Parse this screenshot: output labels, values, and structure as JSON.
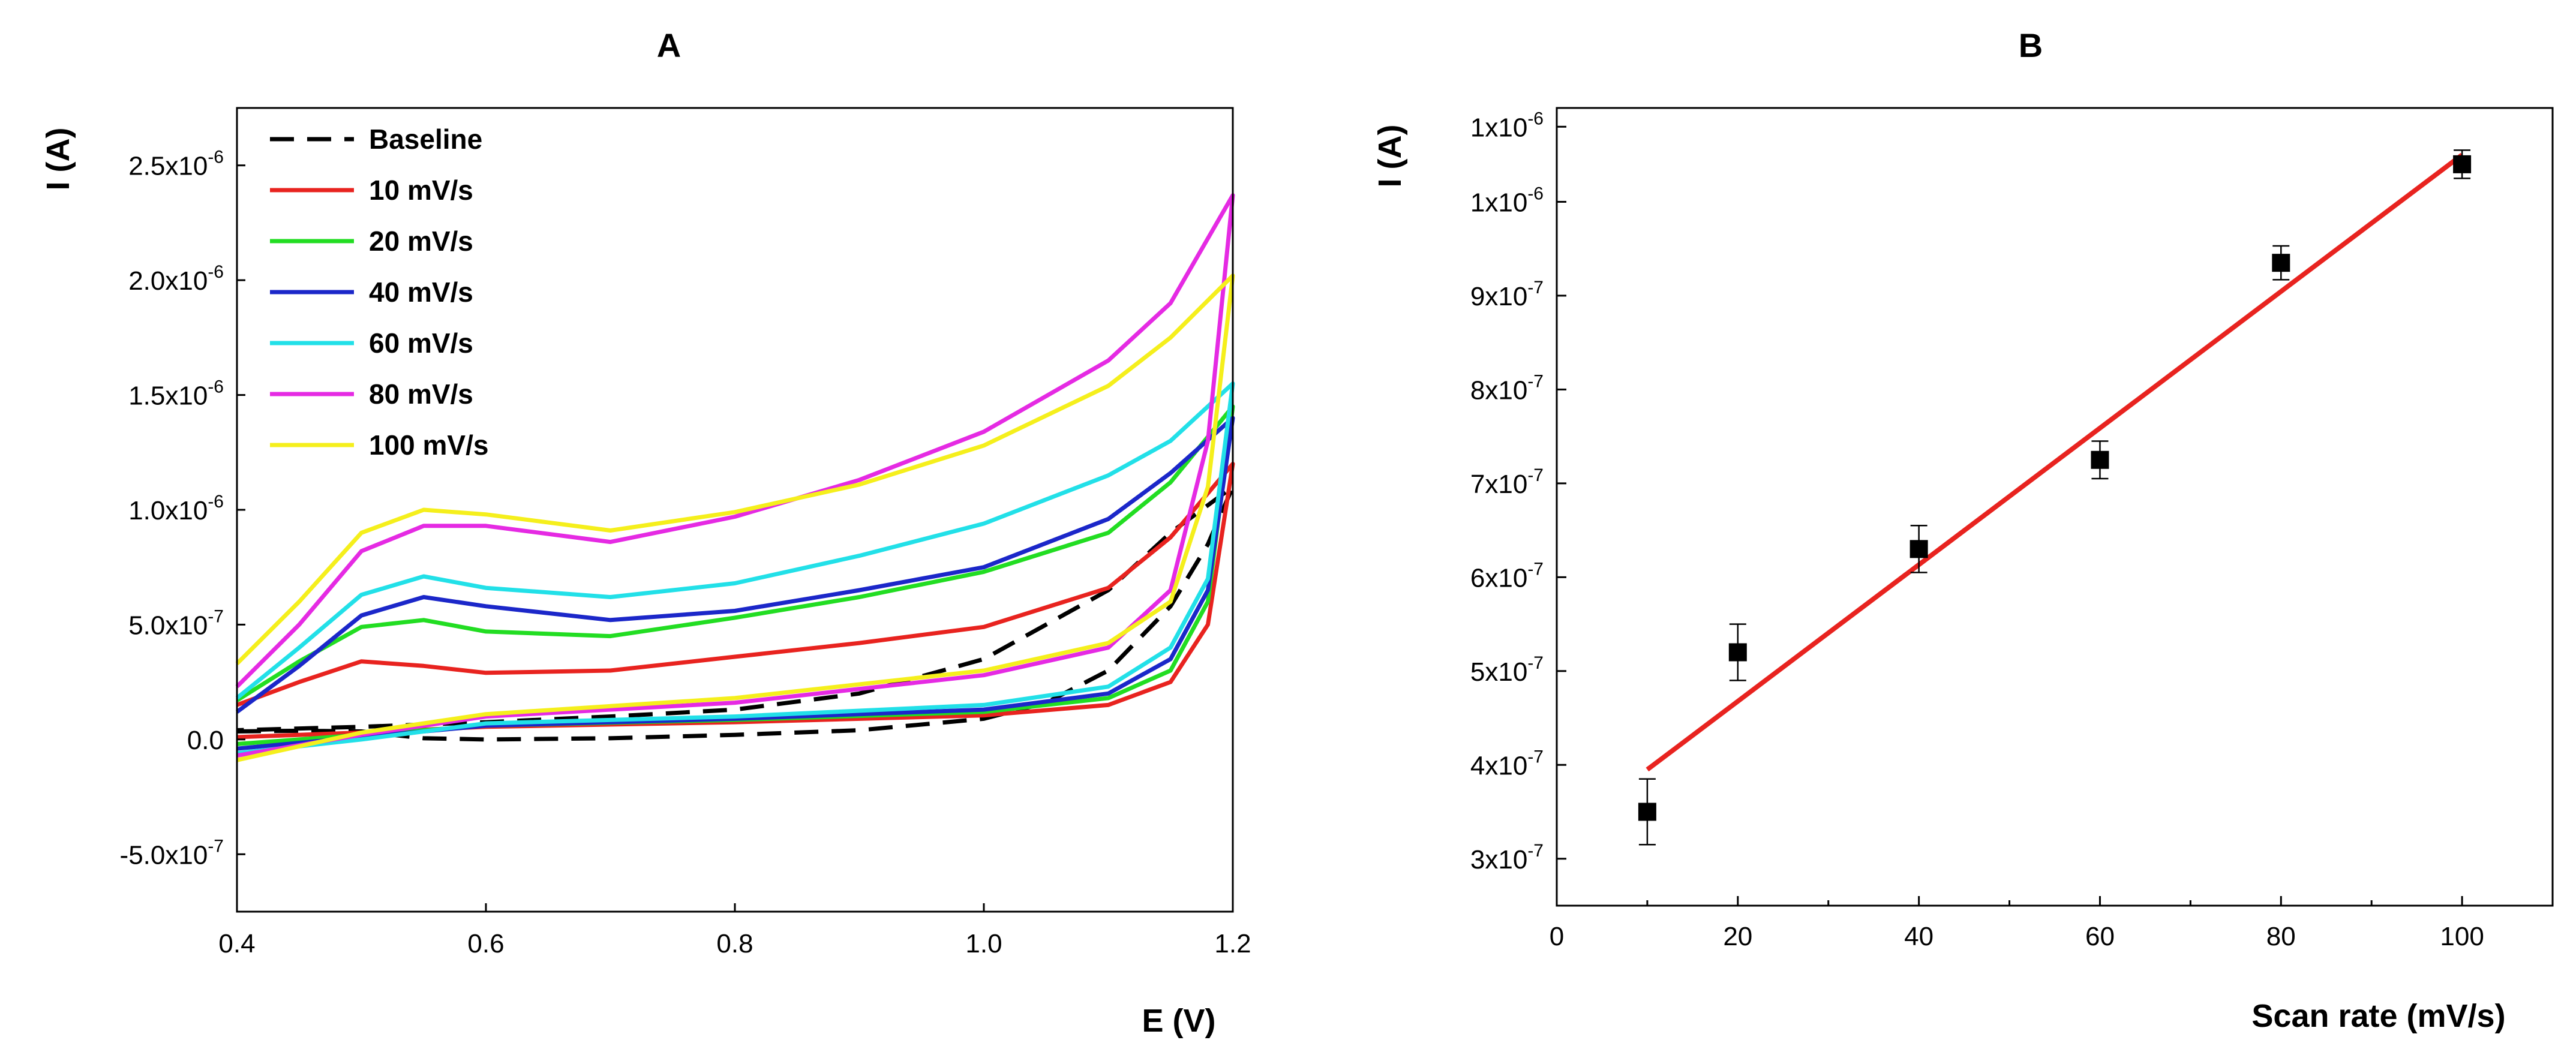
{
  "chart_data": [
    {
      "panel": "A",
      "type": "line",
      "title": "A",
      "xlabel": "E (V)",
      "ylabel": "I (A)",
      "xlim": [
        0.4,
        1.2
      ],
      "ylim": [
        -7.5e-07,
        2.75e-06
      ],
      "xticks": [
        {
          "v": 0.4,
          "label": "0.4"
        },
        {
          "v": 0.6,
          "label": "0.6"
        },
        {
          "v": 0.8,
          "label": "0.8"
        },
        {
          "v": 1.0,
          "label": "1.0"
        },
        {
          "v": 1.2,
          "label": "1.2"
        }
      ],
      "yticks": [
        {
          "v": -5e-07,
          "mant": "-5.0x10",
          "exp": "-7"
        },
        {
          "v": 0,
          "mant": "0.0",
          "exp": ""
        },
        {
          "v": 5e-07,
          "mant": "5.0x10",
          "exp": "-7"
        },
        {
          "v": 1e-06,
          "mant": "1.0x10",
          "exp": "-6"
        },
        {
          "v": 1.5e-06,
          "mant": "1.5x10",
          "exp": "-6"
        },
        {
          "v": 2e-06,
          "mant": "2.0x10",
          "exp": "-6"
        },
        {
          "v": 2.5e-06,
          "mant": "2.5x10",
          "exp": "-6"
        }
      ],
      "legend_position": "top-left",
      "series": [
        {
          "name": "Baseline",
          "color": "#000000",
          "dash": true,
          "forward": [
            [
              0.4,
              3.5e-08
            ],
            [
              0.45,
              3.8e-08
            ],
            [
              0.5,
              3.5e-08
            ],
            [
              0.55,
              5e-09
            ],
            [
              0.6,
              0
            ],
            [
              0.7,
              5e-09
            ],
            [
              0.8,
              2e-08
            ],
            [
              0.9,
              4e-08
            ],
            [
              1.0,
              9e-08
            ],
            [
              1.05,
              1.6e-07
            ],
            [
              1.1,
              3e-07
            ],
            [
              1.15,
              5.8e-07
            ],
            [
              1.18,
              8.5e-07
            ],
            [
              1.2,
              1.1e-06
            ]
          ],
          "reverse": [
            [
              1.2,
              1.1e-06
            ],
            [
              1.15,
              9e-07
            ],
            [
              1.1,
              6.5e-07
            ],
            [
              1.0,
              3.5e-07
            ],
            [
              0.9,
              2e-07
            ],
            [
              0.8,
              1.3e-07
            ],
            [
              0.7,
              1e-07
            ],
            [
              0.6,
              7.5e-08
            ],
            [
              0.5,
              5.5e-08
            ],
            [
              0.4,
              4e-08
            ]
          ]
        },
        {
          "name": "10 mV/s",
          "color": "#e8231f",
          "dash": false,
          "forward": [
            [
              0.4,
              1.5e-07
            ],
            [
              0.45,
              2.5e-07
            ],
            [
              0.5,
              3.4e-07
            ],
            [
              0.55,
              3.2e-07
            ],
            [
              0.6,
              2.9e-07
            ],
            [
              0.7,
              3e-07
            ],
            [
              0.8,
              3.6e-07
            ],
            [
              0.9,
              4.2e-07
            ],
            [
              1.0,
              4.9e-07
            ],
            [
              1.1,
              6.6e-07
            ],
            [
              1.15,
              8.8e-07
            ],
            [
              1.2,
              1.2e-06
            ]
          ],
          "reverse": [
            [
              1.2,
              1.2e-06
            ],
            [
              1.18,
              5e-07
            ],
            [
              1.15,
              2.5e-07
            ],
            [
              1.1,
              1.5e-07
            ],
            [
              1.0,
              1.05e-07
            ],
            [
              0.8,
              7.5e-08
            ],
            [
              0.6,
              5.5e-08
            ],
            [
              0.5,
              3e-08
            ],
            [
              0.4,
              1e-08
            ]
          ]
        },
        {
          "name": "20 mV/s",
          "color": "#22dd22",
          "dash": false,
          "forward": [
            [
              0.4,
              1.7e-07
            ],
            [
              0.45,
              3.4e-07
            ],
            [
              0.5,
              4.9e-07
            ],
            [
              0.55,
              5.2e-07
            ],
            [
              0.6,
              4.7e-07
            ],
            [
              0.7,
              4.5e-07
            ],
            [
              0.8,
              5.3e-07
            ],
            [
              0.9,
              6.2e-07
            ],
            [
              1.0,
              7.3e-07
            ],
            [
              1.1,
              9e-07
            ],
            [
              1.15,
              1.12e-06
            ],
            [
              1.2,
              1.45e-06
            ]
          ],
          "reverse": [
            [
              1.2,
              1.45e-06
            ],
            [
              1.18,
              6e-07
            ],
            [
              1.15,
              3e-07
            ],
            [
              1.1,
              1.8e-07
            ],
            [
              1.0,
              1.2e-07
            ],
            [
              0.8,
              8.5e-08
            ],
            [
              0.6,
              6e-08
            ],
            [
              0.5,
              2e-08
            ],
            [
              0.4,
              -2e-08
            ]
          ]
        },
        {
          "name": "40 mV/s",
          "color": "#1b27c9",
          "dash": false,
          "forward": [
            [
              0.4,
              1.2e-07
            ],
            [
              0.45,
              3.2e-07
            ],
            [
              0.5,
              5.4e-07
            ],
            [
              0.55,
              6.2e-07
            ],
            [
              0.6,
              5.8e-07
            ],
            [
              0.7,
              5.2e-07
            ],
            [
              0.8,
              5.6e-07
            ],
            [
              0.9,
              6.5e-07
            ],
            [
              1.0,
              7.5e-07
            ],
            [
              1.1,
              9.6e-07
            ],
            [
              1.15,
              1.16e-06
            ],
            [
              1.2,
              1.4e-06
            ]
          ],
          "reverse": [
            [
              1.2,
              1.4e-06
            ],
            [
              1.18,
              6.5e-07
            ],
            [
              1.15,
              3.5e-07
            ],
            [
              1.1,
              2e-07
            ],
            [
              1.0,
              1.3e-07
            ],
            [
              0.8,
              9e-08
            ],
            [
              0.6,
              6e-08
            ],
            [
              0.5,
              1e-08
            ],
            [
              0.4,
              -4e-08
            ]
          ]
        },
        {
          "name": "60 mV/s",
          "color": "#22e0e8",
          "dash": false,
          "forward": [
            [
              0.4,
              1.8e-07
            ],
            [
              0.45,
              4e-07
            ],
            [
              0.5,
              6.3e-07
            ],
            [
              0.55,
              7.1e-07
            ],
            [
              0.6,
              6.6e-07
            ],
            [
              0.7,
              6.2e-07
            ],
            [
              0.8,
              6.8e-07
            ],
            [
              0.9,
              8e-07
            ],
            [
              1.0,
              9.4e-07
            ],
            [
              1.1,
              1.15e-06
            ],
            [
              1.15,
              1.3e-06
            ],
            [
              1.2,
              1.55e-06
            ]
          ],
          "reverse": [
            [
              1.2,
              1.55e-06
            ],
            [
              1.18,
              7e-07
            ],
            [
              1.15,
              4e-07
            ],
            [
              1.1,
              2.3e-07
            ],
            [
              1.0,
              1.5e-07
            ],
            [
              0.8,
              1e-07
            ],
            [
              0.6,
              7e-08
            ],
            [
              0.5,
              0
            ],
            [
              0.4,
              -6e-08
            ]
          ]
        },
        {
          "name": "80 mV/s",
          "color": "#e52ae3",
          "dash": false,
          "forward": [
            [
              0.4,
              2.3e-07
            ],
            [
              0.45,
              5e-07
            ],
            [
              0.5,
              8.2e-07
            ],
            [
              0.55,
              9.3e-07
            ],
            [
              0.6,
              9.3e-07
            ],
            [
              0.7,
              8.6e-07
            ],
            [
              0.8,
              9.7e-07
            ],
            [
              0.9,
              1.13e-06
            ],
            [
              1.0,
              1.34e-06
            ],
            [
              1.1,
              1.65e-06
            ],
            [
              1.15,
              1.9e-06
            ],
            [
              1.2,
              2.37e-06
            ]
          ],
          "reverse": [
            [
              1.2,
              2.37e-06
            ],
            [
              1.18,
              1.3e-06
            ],
            [
              1.15,
              6.5e-07
            ],
            [
              1.1,
              4e-07
            ],
            [
              1.0,
              2.8e-07
            ],
            [
              0.8,
              1.6e-07
            ],
            [
              0.6,
              1e-07
            ],
            [
              0.5,
              2e-08
            ],
            [
              0.4,
              -7e-08
            ]
          ]
        },
        {
          "name": "100 mV/s",
          "color": "#f5ef1c",
          "dash": false,
          "forward": [
            [
              0.4,
              3.3e-07
            ],
            [
              0.45,
              6e-07
            ],
            [
              0.5,
              9e-07
            ],
            [
              0.55,
              1e-06
            ],
            [
              0.6,
              9.8e-07
            ],
            [
              0.7,
              9.1e-07
            ],
            [
              0.8,
              9.9e-07
            ],
            [
              0.9,
              1.11e-06
            ],
            [
              1.0,
              1.28e-06
            ],
            [
              1.1,
              1.54e-06
            ],
            [
              1.15,
              1.75e-06
            ],
            [
              1.2,
              2.02e-06
            ]
          ],
          "reverse": [
            [
              1.2,
              2.02e-06
            ],
            [
              1.18,
              1.1e-06
            ],
            [
              1.15,
              6e-07
            ],
            [
              1.1,
              4.2e-07
            ],
            [
              1.0,
              3e-07
            ],
            [
              0.8,
              1.8e-07
            ],
            [
              0.6,
              1.1e-07
            ],
            [
              0.5,
              3e-08
            ],
            [
              0.4,
              -9e-08
            ]
          ]
        }
      ]
    },
    {
      "panel": "B",
      "type": "scatter",
      "title": "B",
      "xlabel": "Scan rate (mV/s)",
      "ylabel": "I (A)",
      "xlim": [
        0,
        110
      ],
      "ylim": [
        2.5e-07,
        1.1e-06
      ],
      "xticks": [
        {
          "v": 0,
          "label": "0"
        },
        {
          "v": 20,
          "label": "20"
        },
        {
          "v": 40,
          "label": "40"
        },
        {
          "v": 60,
          "label": "60"
        },
        {
          "v": 80,
          "label": "80"
        },
        {
          "v": 100,
          "label": "100"
        }
      ],
      "yticks": [
        {
          "v": 3e-07,
          "mant": "3x10",
          "exp": "-7"
        },
        {
          "v": 4e-07,
          "mant": "4x10",
          "exp": "-7"
        },
        {
          "v": 5e-07,
          "mant": "5x10",
          "exp": "-7"
        },
        {
          "v": 6e-07,
          "mant": "6x10",
          "exp": "-7"
        },
        {
          "v": 7e-07,
          "mant": "7x10",
          "exp": "-7"
        },
        {
          "v": 8e-07,
          "mant": "8x10",
          "exp": "-7"
        },
        {
          "v": 9e-07,
          "mant": "9x10",
          "exp": "-7"
        },
        {
          "v": 1e-06,
          "mant": "1x10",
          "exp": "-6"
        },
        {
          "v": 1.08e-06,
          "mant": "1x10",
          "exp": "-6"
        }
      ],
      "points": [
        {
          "x": 10,
          "y": 3.5e-07,
          "err": 3.5e-08
        },
        {
          "x": 20,
          "y": 5.2e-07,
          "err": 3e-08
        },
        {
          "x": 40,
          "y": 6.3e-07,
          "err": 2.5e-08
        },
        {
          "x": 60,
          "y": 7.25e-07,
          "err": 2e-08
        },
        {
          "x": 80,
          "y": 9.35e-07,
          "err": 1.8e-08
        },
        {
          "x": 100,
          "y": 1.04e-06,
          "err": 1.5e-08
        }
      ],
      "fit_line": {
        "color": "#e8231f",
        "x": [
          10,
          100
        ],
        "y": [
          3.95e-07,
          1.05e-06
        ]
      }
    }
  ]
}
